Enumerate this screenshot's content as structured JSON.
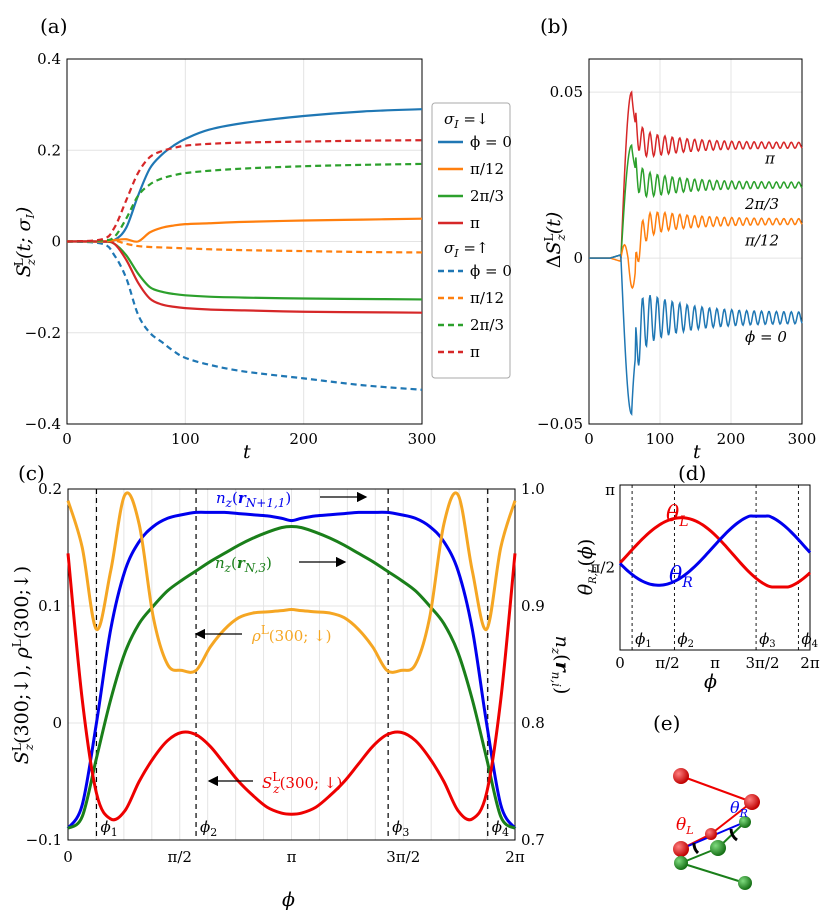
{
  "panels": {
    "a": {
      "label": "(a)"
    },
    "b": {
      "label": "(b)"
    },
    "c": {
      "label": "(c)"
    },
    "d": {
      "label": "(d)"
    },
    "e": {
      "label": "(e)"
    }
  },
  "colors": {
    "blue": "#1f77b4",
    "orange": "#ff7f0e",
    "green": "#2ca02c",
    "red": "#d62728",
    "c_blue": "#0000ee",
    "c_green": "#1a7f1a",
    "c_orange": "#f5a623",
    "c_red": "#ee0000"
  },
  "chart_data": [
    {
      "id": "a",
      "type": "line",
      "xlabel": "t",
      "ylabel": "S_z^L(t;σ_I)",
      "xlim": [
        0,
        300
      ],
      "ylim": [
        -0.4,
        0.4
      ],
      "xticks": [
        "0",
        "100",
        "200",
        "300"
      ],
      "yticks": [
        "−0.4",
        "−0.2",
        "0",
        "0.2",
        "0.4"
      ],
      "grid": true,
      "legend_position": "right-outside",
      "legend_groups": [
        {
          "title": "σ_I =↓",
          "entries": [
            "ϕ = 0",
            "π/12",
            "2π/3",
            "π"
          ]
        },
        {
          "title": "σ_I =↑",
          "entries": [
            "ϕ = 0",
            "π/12",
            "2π/3",
            "π"
          ]
        }
      ],
      "x": [
        0,
        30,
        40,
        50,
        60,
        70,
        80,
        90,
        100,
        120,
        150,
        200,
        250,
        300
      ],
      "series": [
        {
          "name": "ϕ = 0",
          "group": "σ_I =↓",
          "style": "solid",
          "color": "blue",
          "values": [
            0,
            0,
            0.003,
            0.03,
            0.1,
            0.16,
            0.19,
            0.21,
            0.225,
            0.245,
            0.26,
            0.275,
            0.285,
            0.29
          ]
        },
        {
          "name": "π/12",
          "group": "σ_I =↓",
          "style": "solid",
          "color": "orange",
          "values": [
            0,
            0,
            0.003,
            0.005,
            0.0,
            0.02,
            0.03,
            0.035,
            0.038,
            0.04,
            0.043,
            0.046,
            0.048,
            0.05
          ]
        },
        {
          "name": "2π/3",
          "group": "σ_I =↓",
          "style": "solid",
          "color": "green",
          "values": [
            0,
            0,
            -0.005,
            -0.03,
            -0.07,
            -0.1,
            -0.11,
            -0.115,
            -0.118,
            -0.121,
            -0.123,
            -0.125,
            -0.126,
            -0.127
          ]
        },
        {
          "name": "π",
          "group": "σ_I =↓",
          "style": "solid",
          "color": "red",
          "values": [
            0,
            0,
            -0.005,
            -0.04,
            -0.09,
            -0.125,
            -0.138,
            -0.143,
            -0.146,
            -0.149,
            -0.151,
            -0.154,
            -0.155,
            -0.156
          ]
        },
        {
          "name": "ϕ = 0",
          "group": "σ_I =↑",
          "style": "dashed",
          "color": "blue",
          "values": [
            0,
            -0.005,
            -0.03,
            -0.08,
            -0.16,
            -0.2,
            -0.22,
            -0.24,
            -0.255,
            -0.27,
            -0.285,
            -0.3,
            -0.315,
            -0.325
          ]
        },
        {
          "name": "π/12",
          "group": "σ_I =↑",
          "style": "dashed",
          "color": "orange",
          "values": [
            0,
            0,
            0.002,
            -0.005,
            -0.01,
            -0.012,
            -0.013,
            -0.014,
            -0.015,
            -0.017,
            -0.019,
            -0.021,
            -0.023,
            -0.024
          ]
        },
        {
          "name": "2π/3",
          "group": "σ_I =↑",
          "style": "dashed",
          "color": "green",
          "values": [
            0,
            0.002,
            0.01,
            0.05,
            0.1,
            0.125,
            0.138,
            0.145,
            0.15,
            0.155,
            0.16,
            0.165,
            0.168,
            0.17
          ]
        },
        {
          "name": "π",
          "group": "σ_I =↑",
          "style": "dashed",
          "color": "red",
          "values": [
            0,
            0.005,
            0.03,
            0.09,
            0.15,
            0.185,
            0.198,
            0.205,
            0.21,
            0.214,
            0.217,
            0.219,
            0.221,
            0.222
          ]
        }
      ]
    },
    {
      "id": "b",
      "type": "line",
      "xlabel": "t",
      "ylabel": "ΔS_z^L(t)",
      "xlim": [
        0,
        300
      ],
      "ylim": [
        -0.05,
        0.06
      ],
      "xticks": [
        "0",
        "100",
        "200",
        "300"
      ],
      "yticks": [
        "−0.05",
        "0",
        "0.05"
      ],
      "grid": true,
      "annotations": [
        "π",
        "2π/3",
        "π/12",
        "ϕ = 0"
      ],
      "series": [
        {
          "name": "π",
          "color": "red",
          "final": 0.034,
          "peak": 0.05,
          "trough": 0.0
        },
        {
          "name": "2π/3",
          "color": "green",
          "final": 0.022,
          "peak": 0.034,
          "trough": 0.0
        },
        {
          "name": "π/12",
          "color": "orange",
          "final": 0.011,
          "peak": 0.004,
          "trough": -0.009
        },
        {
          "name": "ϕ = 0",
          "color": "blue",
          "final": -0.018,
          "peak": 0.0,
          "trough": -0.047
        }
      ]
    },
    {
      "id": "c",
      "type": "line",
      "xlabel": "ϕ",
      "ylabel_left": "S_z^L(300;↓), ρ^L(300;↓)",
      "ylabel_right": "n_z(r_{n,i})",
      "xlim": [
        0,
        6.2832
      ],
      "ylim_left": [
        -0.1,
        0.2
      ],
      "ylim_right": [
        0.7,
        1.0
      ],
      "xticks": [
        "0",
        "π/2",
        "π",
        "3π/2",
        "2π"
      ],
      "yticks_left": [
        "−0.1",
        "0",
        "0.1",
        "0.2"
      ],
      "yticks_right": [
        "0.7",
        "0.8",
        "0.9",
        "1.0"
      ],
      "grid": true,
      "vlines": {
        "ϕ1": 0.4,
        "ϕ2": 1.8,
        "ϕ3": 4.5,
        "ϕ4": 5.9
      },
      "x": [
        0,
        0.2,
        0.4,
        0.6,
        0.8,
        1.0,
        1.2,
        1.4,
        1.6,
        1.8,
        2.0,
        2.2,
        2.4,
        2.6,
        2.8,
        3.0,
        3.1416
      ],
      "series": [
        {
          "name": "n_z(r_{N+1,1})",
          "axis": "right",
          "color": "c_blue",
          "annotation": "n_z(r_{N+1,1})",
          "values": [
            0.71,
            0.73,
            0.8,
            0.88,
            0.93,
            0.955,
            0.968,
            0.975,
            0.978,
            0.98,
            0.98,
            0.98,
            0.979,
            0.978,
            0.977,
            0.975,
            0.973
          ]
        },
        {
          "name": "n_z(r_{N,3})",
          "axis": "right",
          "color": "c_green",
          "annotation": "n_z(r_{N,3})",
          "values": [
            0.71,
            0.72,
            0.77,
            0.82,
            0.86,
            0.885,
            0.9,
            0.913,
            0.922,
            0.93,
            0.938,
            0.945,
            0.952,
            0.958,
            0.963,
            0.967,
            0.968
          ]
        },
        {
          "name": "ρ^L(300;↓)",
          "axis": "left",
          "color": "c_orange",
          "annotation": "ρ^L(300;↓)",
          "values": [
            0.19,
            0.15,
            0.08,
            0.13,
            0.195,
            0.17,
            0.09,
            0.05,
            0.045,
            0.045,
            0.065,
            0.08,
            0.09,
            0.094,
            0.095,
            0.096,
            0.097
          ]
        },
        {
          "name": "S_z^L(300;↓)",
          "axis": "left",
          "color": "c_red",
          "annotation": "S_z^L(300;↓)",
          "values": [
            0.145,
            0.02,
            -0.06,
            -0.082,
            -0.075,
            -0.05,
            -0.03,
            -0.015,
            -0.008,
            -0.01,
            -0.02,
            -0.035,
            -0.05,
            -0.062,
            -0.072,
            -0.077,
            -0.078
          ]
        }
      ]
    },
    {
      "id": "d",
      "type": "line",
      "xlabel": "ϕ",
      "ylabel": "θ_{R,L}(ϕ)",
      "xlim": [
        0,
        6.2832
      ],
      "ylim": [
        0,
        3.1416
      ],
      "xticks": [
        "0",
        "π/2",
        "π",
        "3π/2",
        "2π"
      ],
      "yticks": [
        "π/2",
        "π"
      ],
      "vline_labels": [
        "ϕ1",
        "ϕ2",
        "ϕ3",
        "ϕ4"
      ],
      "series": [
        {
          "name": "θ_L",
          "color": "c_red",
          "min": 1.2,
          "max": 2.55
        },
        {
          "name": "θ_R",
          "color": "c_blue",
          "min": 1.2,
          "max": 2.55
        }
      ]
    }
  ],
  "diagram_e": {
    "labels": [
      "θ_L",
      "θ_R"
    ]
  }
}
